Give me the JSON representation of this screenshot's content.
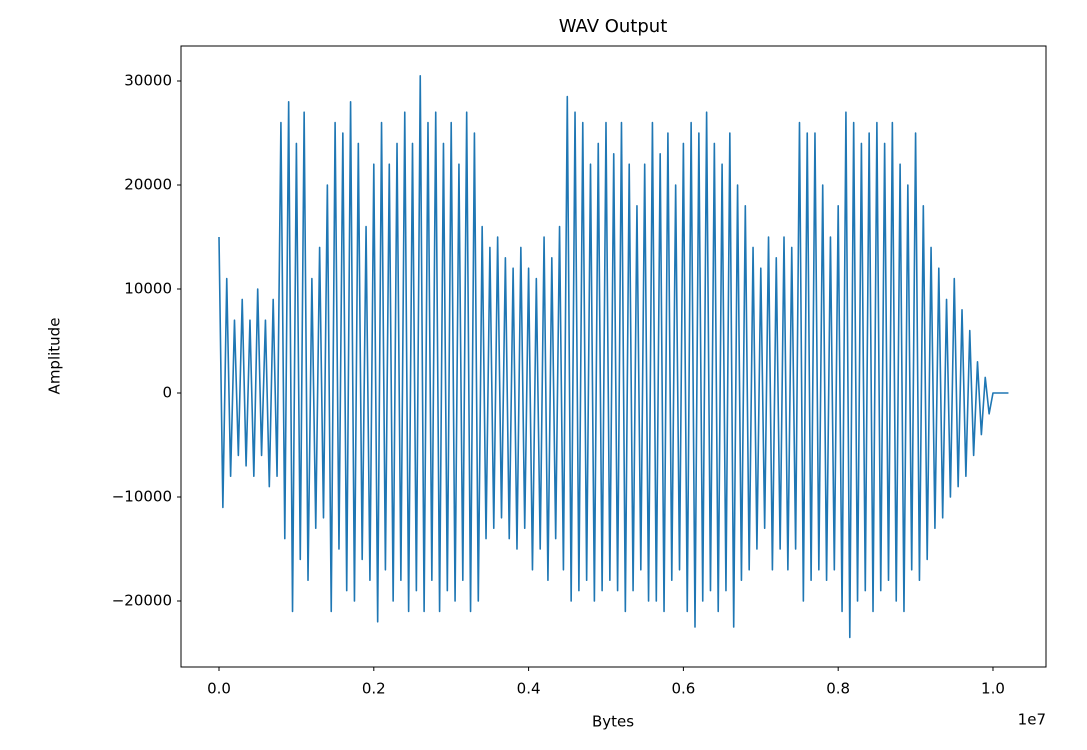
{
  "chart_data": {
    "type": "line",
    "title": "WAV Output",
    "x_label": "Bytes",
    "y_label": "Amplitude",
    "x_offset_label": "1e7",
    "color": "#1f77b4",
    "xlim": [
      -491000,
      10685000
    ],
    "ylim": [
      -26346,
      33365
    ],
    "xticks": [
      {
        "value": 0,
        "label": "0.0"
      },
      {
        "value": 2000000,
        "label": "0.2"
      },
      {
        "value": 4000000,
        "label": "0.4"
      },
      {
        "value": 6000000,
        "label": "0.6"
      },
      {
        "value": 8000000,
        "label": "0.8"
      },
      {
        "value": 10000000,
        "label": "1.0"
      }
    ],
    "yticks": [
      {
        "value": -20000,
        "label": "−20000"
      },
      {
        "value": -10000,
        "label": "−10000"
      },
      0,
      10000,
      20000,
      30000
    ],
    "x": [
      0,
      50000,
      100000,
      150000,
      200000,
      250000,
      300000,
      350000,
      400000,
      450000,
      500000,
      550000,
      600000,
      650000,
      700000,
      750000,
      800000,
      850000,
      900000,
      950000,
      1000000,
      1050000,
      1100000,
      1150000,
      1200000,
      1250000,
      1300000,
      1350000,
      1400000,
      1450000,
      1500000,
      1550000,
      1600000,
      1650000,
      1700000,
      1750000,
      1800000,
      1850000,
      1900000,
      1950000,
      2000000,
      2050000,
      2100000,
      2150000,
      2200000,
      2250000,
      2300000,
      2350000,
      2400000,
      2450000,
      2500000,
      2550000,
      2600000,
      2650000,
      2700000,
      2750000,
      2800000,
      2850000,
      2900000,
      2950000,
      3000000,
      3050000,
      3100000,
      3150000,
      3200000,
      3250000,
      3300000,
      3350000,
      3400000,
      3450000,
      3500000,
      3550000,
      3600000,
      3650000,
      3700000,
      3750000,
      3800000,
      3850000,
      3900000,
      3950000,
      4000000,
      4050000,
      4100000,
      4150000,
      4200000,
      4250000,
      4300000,
      4350000,
      4400000,
      4450000,
      4500000,
      4550000,
      4600000,
      4650000,
      4700000,
      4750000,
      4800000,
      4850000,
      4900000,
      4950000,
      5000000,
      5050000,
      5100000,
      5150000,
      5200000,
      5250000,
      5300000,
      5350000,
      5400000,
      5450000,
      5500000,
      5550000,
      5600000,
      5650000,
      5700000,
      5750000,
      5800000,
      5850000,
      5900000,
      5950000,
      6000000,
      6050000,
      6100000,
      6150000,
      6200000,
      6250000,
      6300000,
      6350000,
      6400000,
      6450000,
      6500000,
      6550000,
      6600000,
      6650000,
      6700000,
      6750000,
      6800000,
      6850000,
      6900000,
      6950000,
      7000000,
      7050000,
      7100000,
      7150000,
      7200000,
      7250000,
      7300000,
      7350000,
      7400000,
      7450000,
      7500000,
      7550000,
      7600000,
      7650000,
      7700000,
      7750000,
      7800000,
      7850000,
      7900000,
      7950000,
      8000000,
      8050000,
      8100000,
      8150000,
      8200000,
      8250000,
      8300000,
      8350000,
      8400000,
      8450000,
      8500000,
      8550000,
      8600000,
      8650000,
      8700000,
      8750000,
      8800000,
      8850000,
      8900000,
      8950000,
      9000000,
      9050000,
      9100000,
      9150000,
      9200000,
      9250000,
      9300000,
      9350000,
      9400000,
      9450000,
      9500000,
      9550000,
      9600000,
      9650000,
      9700000,
      9750000,
      9800000,
      9850000,
      9900000,
      9950000,
      10000000,
      10200000
    ],
    "values": [
      15000,
      -11000,
      11000,
      -8000,
      7000,
      -6000,
      9000,
      -7000,
      7000,
      -8000,
      10000,
      -6000,
      7000,
      -9000,
      9000,
      -8000,
      26000,
      -14000,
      28000,
      -21000,
      24000,
      -16000,
      27000,
      -18000,
      11000,
      -13000,
      14000,
      -12000,
      20000,
      -21000,
      26000,
      -15000,
      25000,
      -19000,
      28000,
      -20000,
      24000,
      -16000,
      16000,
      -18000,
      22000,
      -22000,
      26000,
      -17000,
      22000,
      -20000,
      24000,
      -18000,
      27000,
      -21000,
      24000,
      -19000,
      30500,
      -21000,
      26000,
      -18000,
      27000,
      -21000,
      24000,
      -19000,
      26000,
      -20000,
      22000,
      -18000,
      27000,
      -21000,
      25000,
      -20000,
      16000,
      -14000,
      14000,
      -13000,
      15000,
      -12000,
      13000,
      -14000,
      12000,
      -15000,
      14000,
      -13000,
      12000,
      -17000,
      11000,
      -15000,
      15000,
      -18000,
      13000,
      -14000,
      16000,
      -17000,
      28500,
      -20000,
      27000,
      -19000,
      26000,
      -18000,
      22000,
      -20000,
      24000,
      -19000,
      26000,
      -18000,
      23000,
      -19000,
      26000,
      -21000,
      22000,
      -19000,
      18000,
      -17000,
      22000,
      -20000,
      26000,
      -20000,
      23000,
      -21000,
      25000,
      -18000,
      20000,
      -17000,
      24000,
      -21000,
      26000,
      -22500,
      25000,
      -20000,
      27000,
      -19000,
      24000,
      -21000,
      22000,
      -19000,
      25000,
      -22500,
      20000,
      -18000,
      18000,
      -17000,
      14000,
      -15000,
      12000,
      -13000,
      15000,
      -17000,
      13000,
      -15000,
      15000,
      -17000,
      14000,
      -15000,
      26000,
      -20000,
      25000,
      -18000,
      25000,
      -17000,
      20000,
      -18000,
      15000,
      -17000,
      18000,
      -21000,
      27000,
      -23500,
      26000,
      -20000,
      24000,
      -19000,
      25000,
      -21000,
      26000,
      -19000,
      24000,
      -18000,
      26000,
      -20000,
      22000,
      -21000,
      20000,
      -17000,
      25000,
      -18000,
      18000,
      -16000,
      14000,
      -13000,
      12000,
      -12000,
      9000,
      -10000,
      11000,
      -9000,
      8000,
      -8000,
      6000,
      -6000,
      3000,
      -4000,
      1500,
      -2000,
      0,
      0
    ]
  }
}
